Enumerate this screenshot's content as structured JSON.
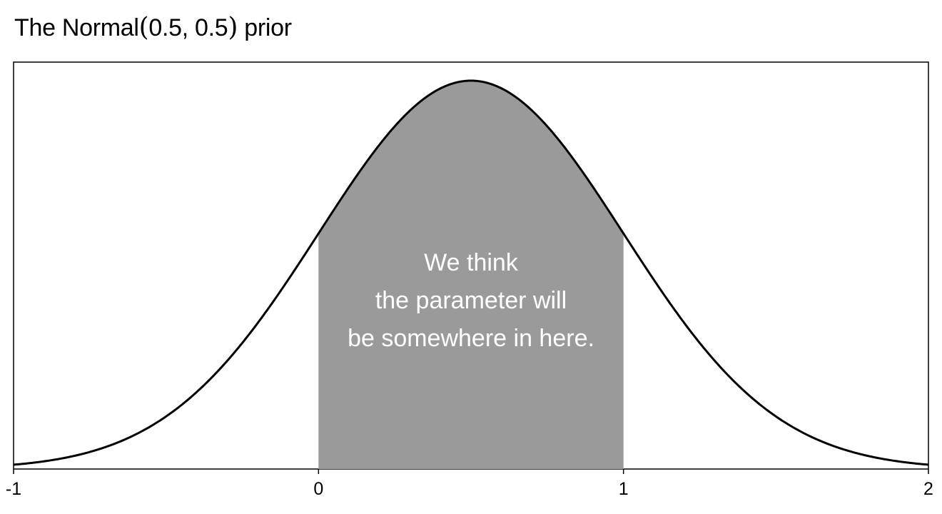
{
  "chart_data": {
    "type": "area",
    "title": {
      "prefix": "The Normal",
      "open_paren": "(",
      "params": "0.5, 0.5",
      "close_paren": ")",
      "suffix": "prior"
    },
    "xlabel": "",
    "ylabel": "",
    "distribution": {
      "name": "Normal",
      "mean": 0.5,
      "sd": 0.5
    },
    "xlim": [
      -1,
      2
    ],
    "x_ticks": [
      {
        "value": -1,
        "label": "-1"
      },
      {
        "value": 0,
        "label": "0"
      },
      {
        "value": 1,
        "label": "1"
      },
      {
        "value": 2,
        "label": "2"
      }
    ],
    "y_axis_shown": false,
    "grid": false,
    "shaded_region": {
      "from": 0,
      "to": 1,
      "color": "#9a9a9a"
    },
    "curve_color": "#000000",
    "annotation": {
      "lines": [
        "We think",
        "the parameter will",
        "be somewhere in here."
      ],
      "color": "#ffffff"
    }
  }
}
